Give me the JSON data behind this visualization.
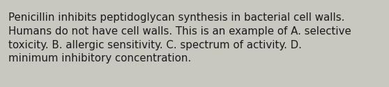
{
  "text": "Penicillin inhibits peptidoglycan synthesis in bacterial cell walls.\nHumans do not have cell walls. This is an example of A. selective\ntoxicity. B. allergic sensitivity. C. spectrum of activity. D.\nminimum inhibitory concentration.",
  "background_color": "#c8c8c0",
  "text_color": "#1a1a1a",
  "font_size": 10.8,
  "fig_width": 5.58,
  "fig_height": 1.26,
  "dpi": 100
}
